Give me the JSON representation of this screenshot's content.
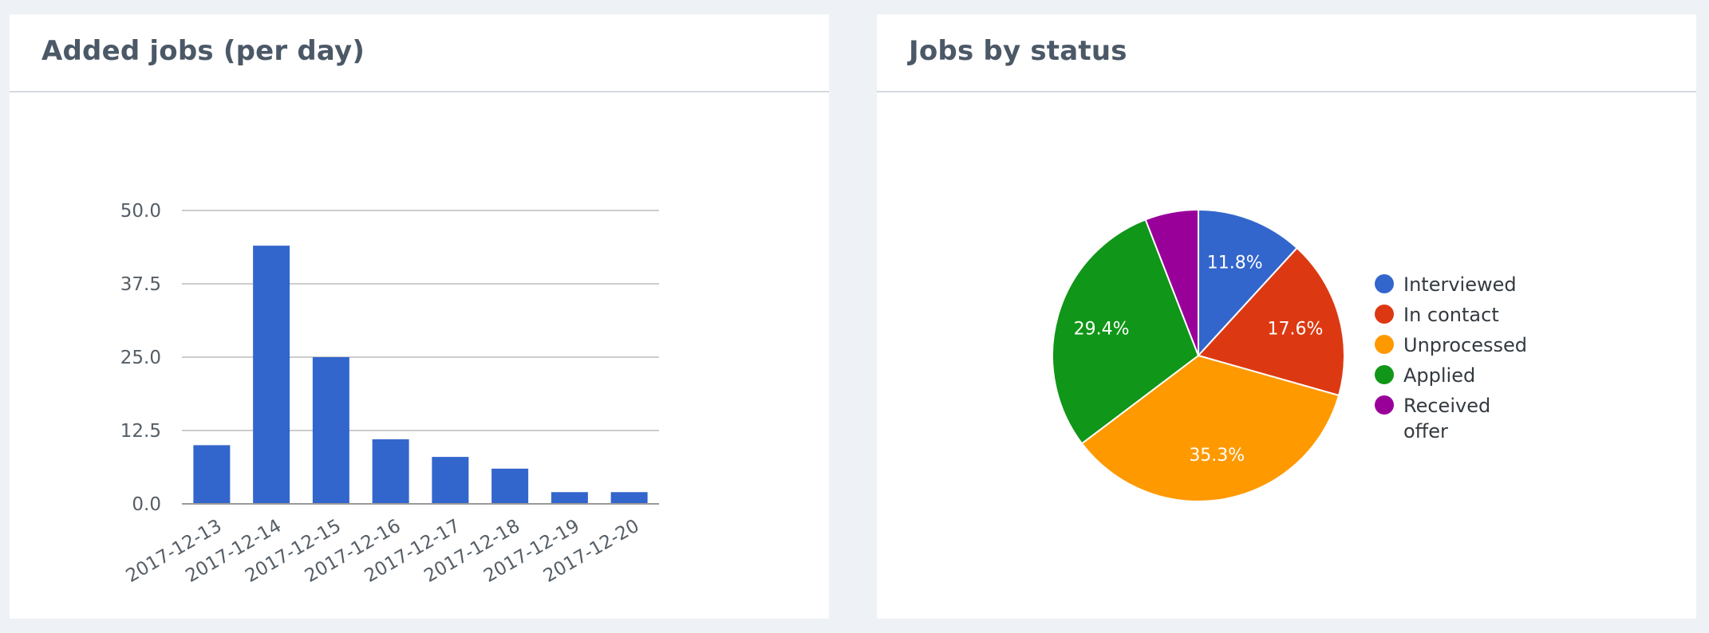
{
  "panels": {
    "bar": {
      "title": "Added jobs (per day)"
    },
    "pie": {
      "title": "Jobs by status"
    }
  },
  "chart_data": [
    {
      "type": "bar",
      "title": "Added jobs (per day)",
      "categories": [
        "2017-12-13",
        "2017-12-14",
        "2017-12-15",
        "2017-12-16",
        "2017-12-17",
        "2017-12-18",
        "2017-12-19",
        "2017-12-20"
      ],
      "values": [
        10,
        44,
        25,
        11,
        8,
        6,
        2,
        2
      ],
      "ylim": [
        0,
        50
      ],
      "yticks": [
        "0.0",
        "12.5",
        "25.0",
        "37.5",
        "50.0"
      ],
      "grid": true,
      "color": "#3366cc"
    },
    {
      "type": "pie",
      "title": "Jobs by status",
      "legend_position": "right",
      "slices": [
        {
          "label": "Interviewed",
          "value": 11.8,
          "pct_label": "11.8%",
          "color": "#3366cc"
        },
        {
          "label": "In contact",
          "value": 17.6,
          "pct_label": "17.6%",
          "color": "#dc3912"
        },
        {
          "label": "Unprocessed",
          "value": 35.3,
          "pct_label": "35.3%",
          "color": "#ff9900"
        },
        {
          "label": "Applied",
          "value": 29.4,
          "pct_label": "29.4%",
          "color": "#109618"
        },
        {
          "label": "Received offer",
          "value": 5.9,
          "pct_label": "",
          "color": "#990099"
        }
      ]
    }
  ]
}
